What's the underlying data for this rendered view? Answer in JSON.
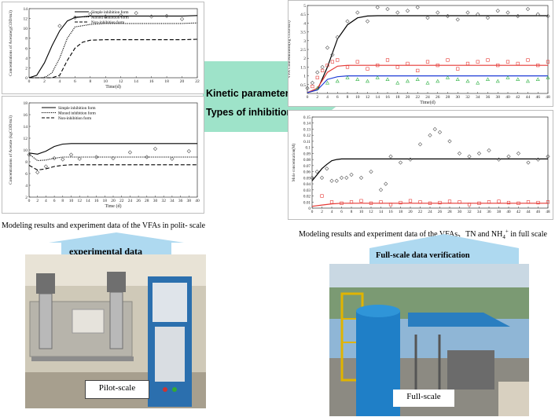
{
  "colors": {
    "arrow_green": "#9ee3c9",
    "arrow_blue": "#aed9f0",
    "series_red": "#e53935",
    "series_blue": "#1e3cd6",
    "series_green": "#36b44a"
  },
  "center": {
    "line1": "Kinetic parameters",
    "line2": "Types of inhibition"
  },
  "captions": {
    "left": "Modeling results and experiment data of the VFAs in polit- scale",
    "right_pre": "Modeling results and experiment data of the VFAs、TN and NH",
    "right_sub": "4",
    "right_sup": "+",
    "right_post": " in full scale"
  },
  "arrows": {
    "left_label": "experimental data",
    "right_label": "Full-scale data verification"
  },
  "photos": {
    "left_label": "Pilot-scale",
    "right_label": "Full-scale"
  },
  "chart_data": [
    {
      "type": "line",
      "xlabel": "Time(d)",
      "ylabel": "Concentrations of Acetate(gCOD/m3)",
      "xlim": [
        0,
        22
      ],
      "ylim": [
        0,
        14
      ],
      "xticks": [
        0,
        2,
        4,
        6,
        8,
        10,
        12,
        14,
        16,
        18,
        20,
        22
      ],
      "yticks": [
        0,
        2,
        4,
        6,
        8,
        10,
        12,
        14
      ],
      "series": [
        {
          "name": "Simple inhibition form",
          "style": "solid",
          "x": [
            0,
            1,
            2,
            3,
            4,
            5,
            6,
            8,
            10,
            12,
            14,
            16,
            18,
            20,
            22
          ],
          "y": [
            0,
            0.5,
            3,
            6.5,
            9.5,
            11.5,
            12.2,
            12.5,
            12.5,
            12.5,
            12.5,
            12.5,
            12.5,
            12.5,
            12.6
          ]
        },
        {
          "name": "Monod inhibition form",
          "style": "dotted",
          "x": [
            0,
            2,
            3,
            4,
            5,
            6,
            8,
            10,
            12,
            14,
            16,
            18,
            20,
            22
          ],
          "y": [
            0,
            0,
            1,
            4,
            8,
            10.3,
            10.8,
            11,
            11,
            11,
            11,
            11,
            11,
            11.1
          ]
        },
        {
          "name": "Non-inhibition form",
          "style": "dashed",
          "x": [
            0,
            3,
            4,
            5,
            6,
            7,
            8,
            10,
            12,
            14,
            16,
            18,
            20,
            22
          ],
          "y": [
            0,
            0,
            0.5,
            3.5,
            6,
            7.2,
            7.6,
            7.7,
            7.7,
            7.7,
            7.7,
            7.7,
            7.7,
            7.8
          ]
        },
        {
          "name": "",
          "style": "markers",
          "x": [
            4,
            6,
            8,
            10,
            12,
            14,
            16,
            18,
            20
          ],
          "y": [
            10.5,
            12.2,
            12.9,
            12.4,
            12.6,
            13.1,
            12.4,
            12.5,
            11.9
          ]
        }
      ]
    },
    {
      "type": "line",
      "xlabel": "Time (d)",
      "ylabel": "Concentrations of Acetate (kgCOD/m3)",
      "xlim": [
        0,
        40
      ],
      "ylim": [
        2,
        18
      ],
      "xticks": [
        0,
        2,
        4,
        6,
        8,
        10,
        12,
        14,
        16,
        18,
        20,
        22,
        24,
        26,
        28,
        30,
        32,
        34,
        36,
        38,
        40
      ],
      "yticks": [
        2,
        4,
        6,
        8,
        10,
        12,
        14,
        16,
        18
      ],
      "series": [
        {
          "name": "Simple inhibition form",
          "style": "solid",
          "x": [
            0,
            2,
            4,
            6,
            8,
            10,
            12,
            16,
            20,
            24,
            28,
            32,
            36,
            40
          ],
          "y": [
            9.5,
            9.3,
            9.8,
            10.6,
            11,
            11.1,
            11.1,
            11.1,
            11.1,
            11.1,
            11.1,
            11.1,
            11.1,
            11.1
          ]
        },
        {
          "name": "Monod inhibition form",
          "style": "dotted",
          "x": [
            0,
            2,
            4,
            6,
            8,
            10,
            12,
            16,
            20,
            24,
            28,
            32,
            36,
            40
          ],
          "y": [
            9.3,
            8.2,
            8.3,
            8.6,
            8.8,
            8.8,
            8.8,
            8.8,
            8.8,
            8.8,
            8.8,
            8.8,
            8.8,
            8.8
          ]
        },
        {
          "name": "Non-inhibition form",
          "style": "dashed",
          "x": [
            0,
            2,
            4,
            6,
            8,
            10,
            12,
            16,
            20,
            24,
            28,
            32,
            36,
            40
          ],
          "y": [
            7.4,
            6.6,
            6.8,
            7.2,
            7.4,
            7.5,
            7.5,
            7.5,
            7.5,
            7.5,
            7.5,
            7.5,
            7.5,
            7.5
          ]
        },
        {
          "name": "",
          "style": "markers",
          "x": [
            0,
            2,
            4,
            6,
            8,
            10,
            12,
            16,
            20,
            24,
            28,
            30,
            34,
            38
          ],
          "y": [
            9.2,
            6.2,
            7.2,
            8.6,
            8.4,
            9.2,
            8.5,
            8.8,
            8.6,
            9.6,
            8.8,
            10.2,
            8.5,
            9.8
          ]
        }
      ]
    },
    {
      "type": "line",
      "xlabel": "Time(d)",
      "ylabel": "VFA Concentration(kg COD/m3)",
      "xlim": [
        0,
        48
      ],
      "ylim": [
        0,
        5
      ],
      "xticks": [
        0,
        2,
        4,
        6,
        8,
        10,
        12,
        14,
        16,
        18,
        20,
        22,
        24,
        26,
        28,
        30,
        32,
        34,
        36,
        38,
        40,
        42,
        44,
        46,
        48
      ],
      "yticks": [
        0.5,
        1,
        1.5,
        2,
        2.5,
        3,
        3.5,
        4,
        4.5,
        5
      ],
      "series": [
        {
          "name": "",
          "style": "solid",
          "color": "#000000",
          "x": [
            0,
            2,
            4,
            6,
            8,
            10,
            12,
            14,
            18,
            24,
            30,
            36,
            42,
            48
          ],
          "y": [
            0.05,
            0.2,
            1.5,
            3.1,
            3.9,
            4.3,
            4.4,
            4.42,
            4.42,
            4.42,
            4.42,
            4.42,
            4.42,
            4.42
          ]
        },
        {
          "name": "",
          "style": "markers",
          "color": "#444444",
          "x": [
            0,
            1,
            2,
            3,
            4,
            5,
            6,
            8,
            10,
            12,
            14,
            16,
            18,
            20,
            22,
            24,
            26,
            28,
            30,
            32,
            34,
            36,
            38,
            40,
            42,
            44,
            46,
            48
          ],
          "y": [
            0.3,
            0.6,
            1.2,
            1.5,
            2.6,
            2.2,
            3.2,
            4.1,
            4.6,
            4.1,
            4.9,
            4.8,
            4.6,
            4.7,
            4.9,
            4.3,
            4.6,
            4.4,
            4.2,
            4.6,
            4.5,
            4.3,
            4.7,
            4.6,
            4.4,
            4.8,
            4.5,
            4.4
          ]
        },
        {
          "name": "",
          "style": "solid",
          "color": "#e53935",
          "x": [
            0,
            2,
            4,
            6,
            8,
            12,
            16,
            24,
            32,
            40,
            48
          ],
          "y": [
            0.05,
            0.3,
            1.2,
            1.55,
            1.6,
            1.6,
            1.6,
            1.6,
            1.6,
            1.6,
            1.6
          ]
        },
        {
          "name": "",
          "style": "markers",
          "color": "#e53935",
          "x": [
            1,
            2,
            3,
            4,
            5,
            6,
            8,
            10,
            12,
            14,
            16,
            18,
            20,
            22,
            24,
            26,
            28,
            30,
            32,
            34,
            36,
            38,
            40,
            42,
            44,
            46,
            48
          ],
          "y": [
            0.4,
            0.9,
            1.3,
            1.6,
            1.8,
            1.9,
            1.5,
            1.8,
            1.4,
            1.6,
            1.9,
            1.5,
            1.7,
            1.3,
            1.8,
            1.6,
            1.9,
            1.4,
            1.7,
            1.8,
            1.9,
            1.6,
            1.8,
            1.7,
            1.9,
            1.6,
            1.8
          ]
        },
        {
          "name": "",
          "style": "solid",
          "color": "#1e3cd6",
          "x": [
            0,
            2,
            4,
            6,
            8,
            12,
            16,
            24,
            32,
            40,
            48
          ],
          "y": [
            0.05,
            0.2,
            0.8,
            0.95,
            1,
            1,
            1,
            1,
            1,
            1,
            1
          ]
        },
        {
          "name": "",
          "style": "markers",
          "color": "#36b44a",
          "x": [
            2,
            4,
            6,
            8,
            10,
            12,
            14,
            16,
            18,
            20,
            22,
            24,
            26,
            28,
            30,
            32,
            34,
            36,
            38,
            40,
            42,
            44,
            46,
            48
          ],
          "y": [
            0.3,
            0.6,
            0.7,
            0.9,
            0.8,
            0.7,
            0.9,
            0.8,
            0.6,
            0.7,
            0.8,
            0.6,
            0.7,
            0.9,
            0.8,
            0.7,
            0.6,
            0.8,
            0.7,
            0.9,
            0.8,
            0.7,
            0.8,
            0.9
          ]
        }
      ]
    },
    {
      "type": "line",
      "xlabel": "",
      "ylabel": "Mole concentration(M)",
      "xlim": [
        0,
        48
      ],
      "ylim": [
        0,
        0.15
      ],
      "xticks": [
        0,
        2,
        4,
        6,
        8,
        10,
        12,
        14,
        16,
        18,
        20,
        22,
        24,
        26,
        28,
        30,
        32,
        34,
        36,
        38,
        40,
        42,
        44,
        46,
        48
      ],
      "yticks": [
        0,
        0.01,
        0.02,
        0.03,
        0.04,
        0.05,
        0.06,
        0.07,
        0.08,
        0.09,
        0.1,
        0.11,
        0.12,
        0.13,
        0.14,
        0.15
      ],
      "series": [
        {
          "name": "",
          "style": "solid",
          "color": "#000000",
          "x": [
            0,
            1,
            2,
            3,
            4,
            5,
            6,
            8,
            12,
            16,
            24,
            32,
            40,
            48
          ],
          "y": [
            0.045,
            0.055,
            0.065,
            0.072,
            0.078,
            0.08,
            0.081,
            0.081,
            0.081,
            0.081,
            0.081,
            0.081,
            0.081,
            0.081
          ]
        },
        {
          "name": "",
          "style": "markers",
          "color": "#444444",
          "x": [
            0,
            1,
            2,
            3,
            4,
            5,
            6,
            7,
            8,
            10,
            12,
            14,
            15,
            16,
            18,
            20,
            22,
            24,
            25,
            26,
            28,
            30,
            32,
            34,
            36,
            38,
            40,
            42,
            44,
            46,
            48
          ],
          "y": [
            0.05,
            0.06,
            0.05,
            0.065,
            0.045,
            0.045,
            0.05,
            0.05,
            0.055,
            0.05,
            0.06,
            0.03,
            0.04,
            0.085,
            0.075,
            0.08,
            0.105,
            0.12,
            0.13,
            0.125,
            0.11,
            0.09,
            0.085,
            0.09,
            0.095,
            0.08,
            0.085,
            0.09,
            0.075,
            0.08,
            0.085
          ]
        },
        {
          "name": "",
          "style": "solid",
          "color": "#e53935",
          "x": [
            0,
            2,
            4,
            6,
            8,
            16,
            24,
            32,
            40,
            48
          ],
          "y": [
            0.003,
            0.005,
            0.007,
            0.008,
            0.008,
            0.008,
            0.008,
            0.008,
            0.008,
            0.008
          ]
        },
        {
          "name": "",
          "style": "markers",
          "color": "#e53935",
          "x": [
            2,
            4,
            6,
            8,
            10,
            12,
            14,
            16,
            18,
            20,
            22,
            24,
            26,
            28,
            30,
            32,
            34,
            36,
            38,
            40,
            42,
            44,
            46,
            48
          ],
          "y": [
            0.02,
            0.01,
            0.008,
            0.01,
            0.012,
            0.008,
            0.01,
            0.006,
            0.009,
            0.012,
            0.01,
            0.008,
            0.009,
            0.011,
            0.01,
            0.006,
            0.008,
            0.01,
            0.011,
            0.009,
            0.008,
            0.01,
            0.009,
            0.01
          ]
        }
      ]
    }
  ]
}
